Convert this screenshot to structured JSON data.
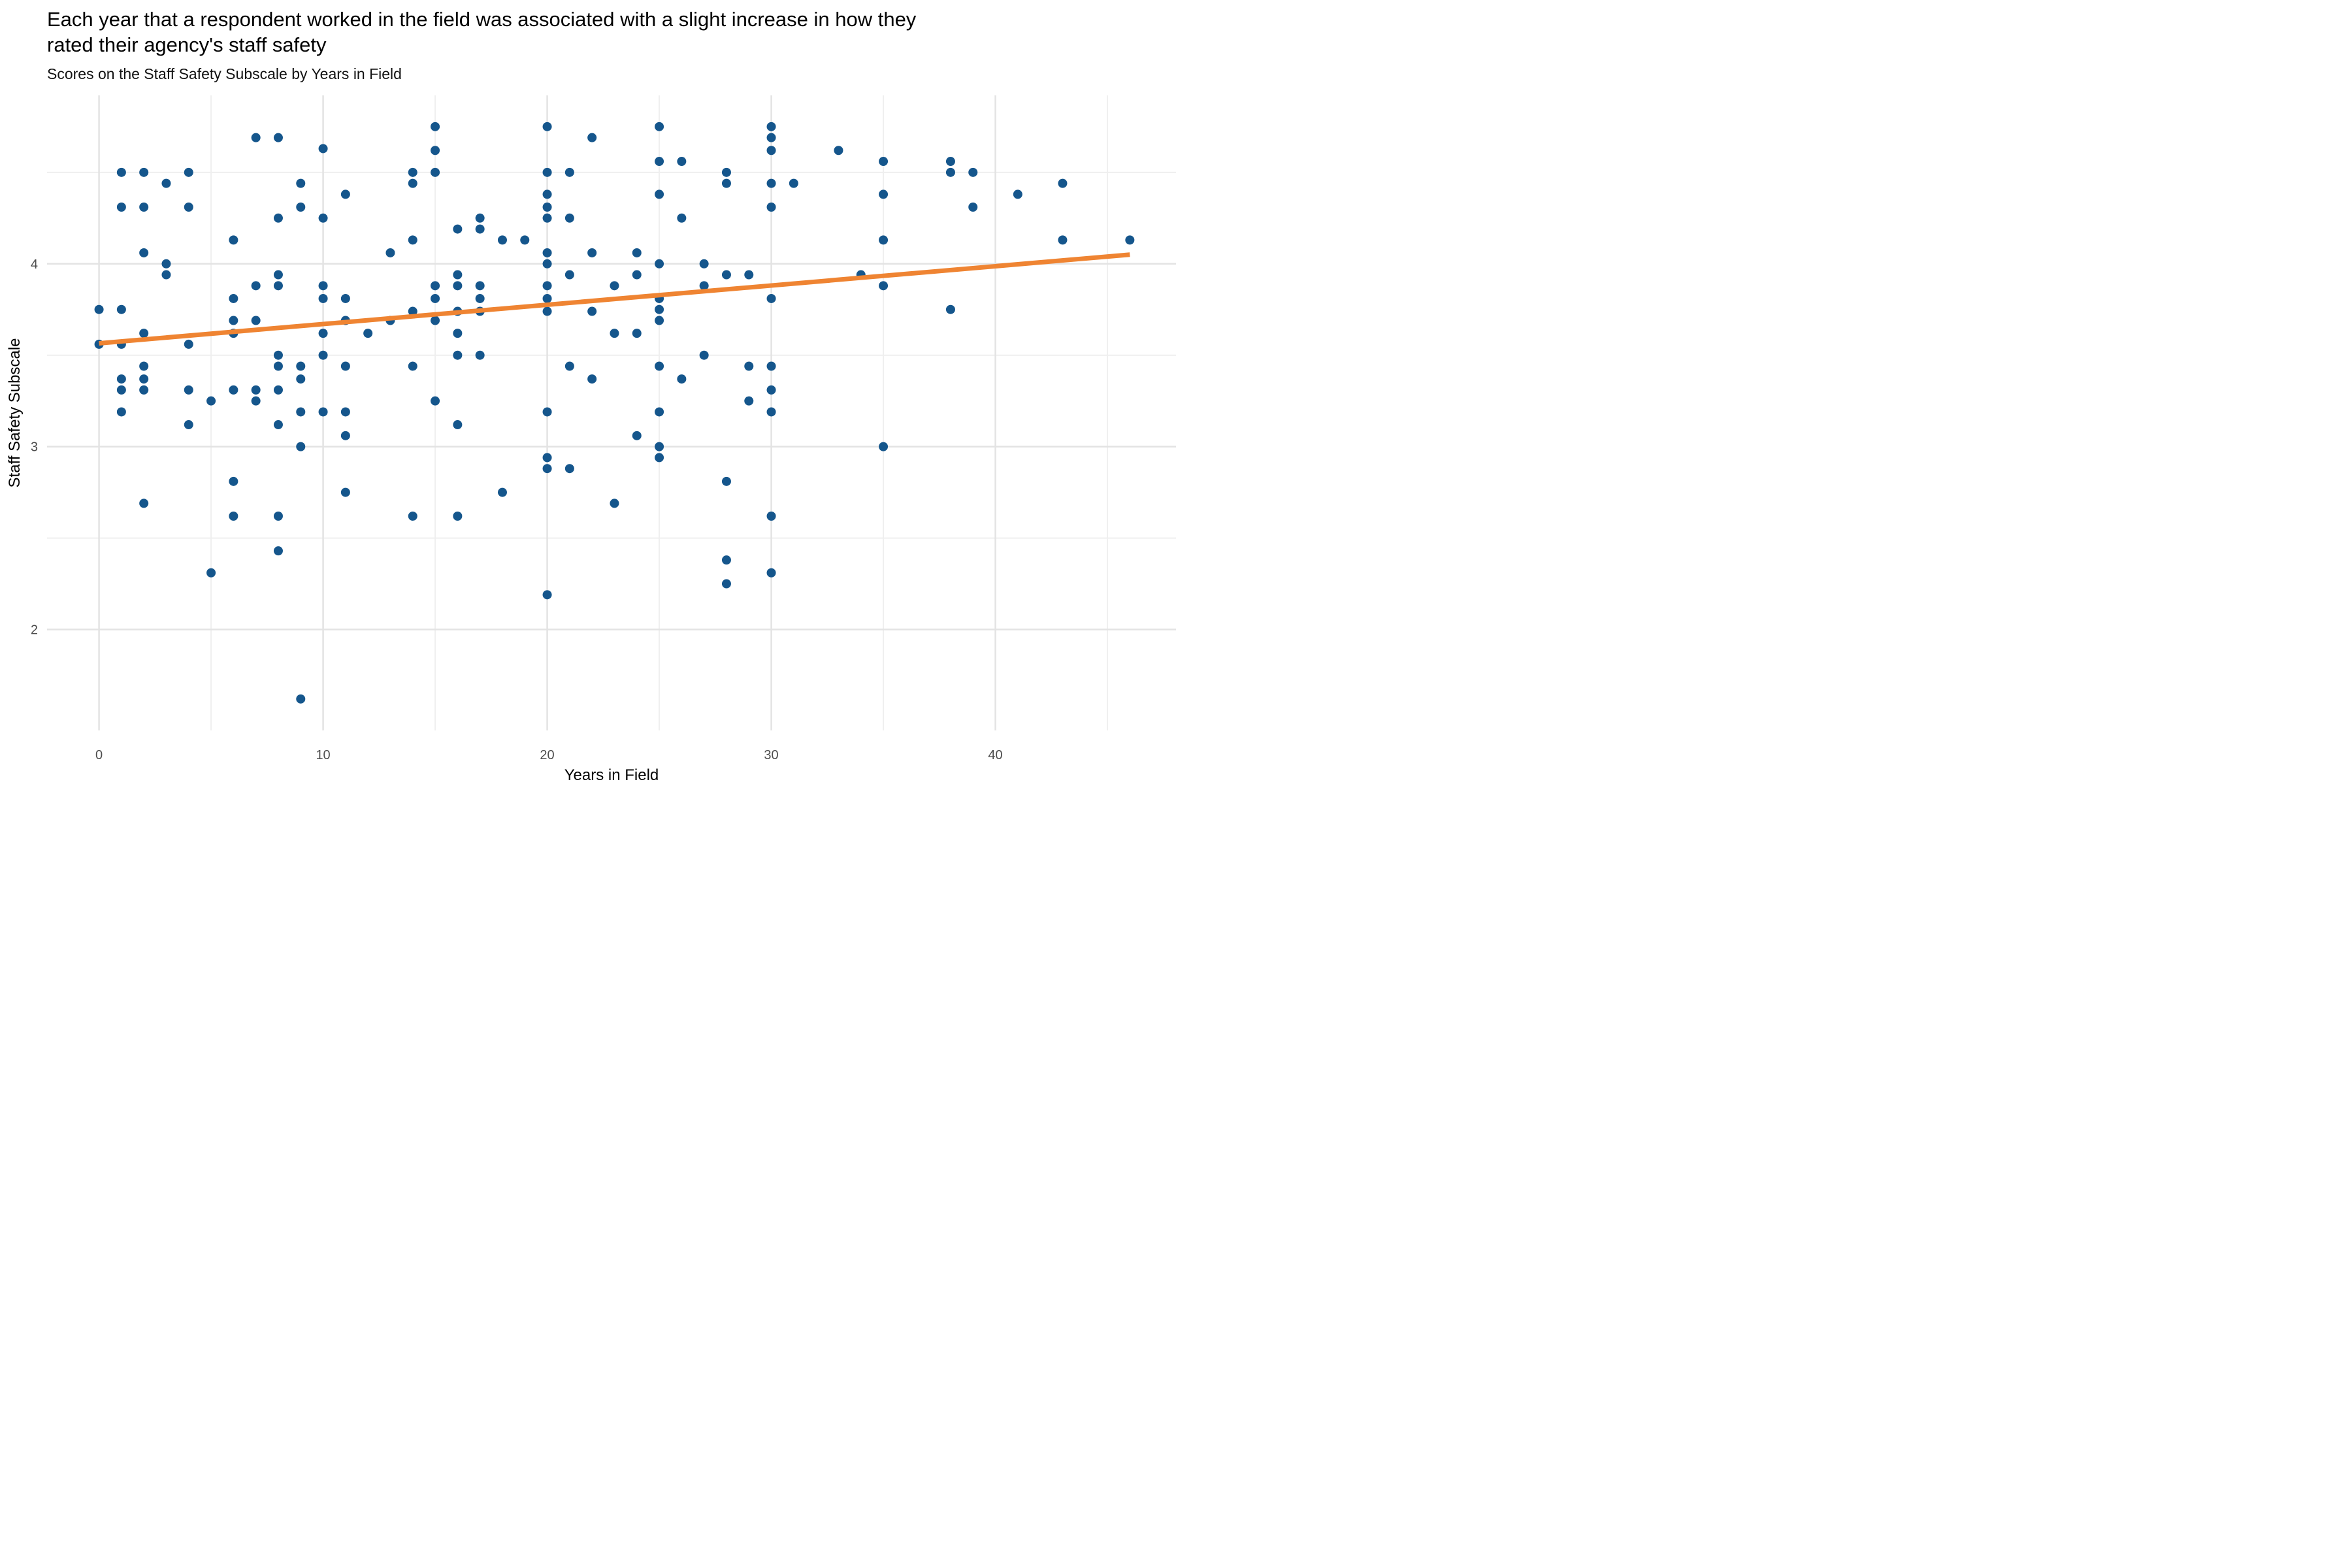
{
  "header": {
    "title_line1": "Each year that a respondent worked in the field was associated with a slight increase in how they",
    "title_line2": "rated their agency's staff safety",
    "subtitle": "Scores on the Staff Safety Subscale by Years in Field"
  },
  "chart_data": {
    "type": "scatter",
    "title": "Each year that a respondent worked in the field was associated with a slight increase in how they rated their agency's staff safety",
    "subtitle": "Scores on the Staff Safety Subscale by Years in Field",
    "xlabel": "Years in Field",
    "ylabel": "Staff Safety Subscale",
    "xlim": [
      -2.32,
      48.06
    ],
    "ylim": [
      1.448,
      4.921
    ],
    "x_major_ticks": [
      0,
      10,
      20,
      30,
      40
    ],
    "x_minor_ticks": [
      5,
      15,
      25,
      35,
      45
    ],
    "y_major_ticks": [
      2,
      3,
      4
    ],
    "y_minor_ticks": [
      2.5,
      3.5,
      4.5
    ],
    "grid": "on",
    "legend": "none",
    "colors": {
      "point": "#15568C",
      "trend": "#EF8432",
      "grid_major": "#E3E3E3",
      "grid_minor": "#EFEFEF",
      "tick_text": "#4D4D4D"
    },
    "trend_line": {
      "x1": 0,
      "y1": 3.565,
      "x2": 46,
      "y2": 4.05
    },
    "points": [
      [
        0,
        3.75
      ],
      [
        1,
        3.75
      ],
      [
        0,
        3.56
      ],
      [
        1,
        3.56
      ],
      [
        4,
        3.56
      ],
      [
        2,
        3.62
      ],
      [
        6,
        3.62
      ],
      [
        10,
        3.62
      ],
      [
        12,
        3.62
      ],
      [
        16,
        3.62
      ],
      [
        23,
        3.62
      ],
      [
        24,
        3.62
      ],
      [
        6,
        3.69
      ],
      [
        7,
        3.69
      ],
      [
        11,
        3.69
      ],
      [
        13,
        3.69
      ],
      [
        15,
        3.69
      ],
      [
        25,
        3.69
      ],
      [
        14,
        3.74
      ],
      [
        16,
        3.74
      ],
      [
        17,
        3.74
      ],
      [
        20,
        3.74
      ],
      [
        22,
        3.74
      ],
      [
        25,
        3.75
      ],
      [
        38,
        3.75
      ],
      [
        6,
        3.81
      ],
      [
        10,
        3.81
      ],
      [
        11,
        3.81
      ],
      [
        15,
        3.81
      ],
      [
        17,
        3.81
      ],
      [
        20,
        3.81
      ],
      [
        25,
        3.81
      ],
      [
        30,
        3.81
      ],
      [
        7,
        3.88
      ],
      [
        8,
        3.88
      ],
      [
        10,
        3.88
      ],
      [
        15,
        3.88
      ],
      [
        16,
        3.88
      ],
      [
        17,
        3.88
      ],
      [
        20,
        3.88
      ],
      [
        23,
        3.88
      ],
      [
        27,
        3.88
      ],
      [
        35,
        3.88
      ],
      [
        3,
        3.94
      ],
      [
        8,
        3.94
      ],
      [
        16,
        3.94
      ],
      [
        21,
        3.94
      ],
      [
        24,
        3.94
      ],
      [
        28,
        3.94
      ],
      [
        29,
        3.94
      ],
      [
        34,
        3.94
      ],
      [
        3,
        4.0
      ],
      [
        20,
        4.0
      ],
      [
        25,
        4.0
      ],
      [
        27,
        4.0
      ],
      [
        2,
        4.06
      ],
      [
        13,
        4.06
      ],
      [
        20,
        4.06
      ],
      [
        22,
        4.06
      ],
      [
        24,
        4.06
      ],
      [
        6,
        4.13
      ],
      [
        14,
        4.13
      ],
      [
        18,
        4.13
      ],
      [
        19,
        4.13
      ],
      [
        35,
        4.13
      ],
      [
        43,
        4.13
      ],
      [
        46,
        4.13
      ],
      [
        16,
        4.19
      ],
      [
        17,
        4.19
      ],
      [
        8,
        4.25
      ],
      [
        10,
        4.25
      ],
      [
        17,
        4.25
      ],
      [
        20,
        4.25
      ],
      [
        21,
        4.25
      ],
      [
        26,
        4.25
      ],
      [
        1,
        4.31
      ],
      [
        2,
        4.31
      ],
      [
        4,
        4.31
      ],
      [
        9,
        4.31
      ],
      [
        20,
        4.31
      ],
      [
        30,
        4.31
      ],
      [
        39,
        4.31
      ],
      [
        11,
        4.38
      ],
      [
        20,
        4.38
      ],
      [
        25,
        4.38
      ],
      [
        35,
        4.38
      ],
      [
        41,
        4.38
      ],
      [
        3,
        4.44
      ],
      [
        9,
        4.44
      ],
      [
        14,
        4.44
      ],
      [
        28,
        4.44
      ],
      [
        30,
        4.44
      ],
      [
        31,
        4.44
      ],
      [
        43,
        4.44
      ],
      [
        1,
        4.5
      ],
      [
        2,
        4.5
      ],
      [
        4,
        4.5
      ],
      [
        14,
        4.5
      ],
      [
        15,
        4.5
      ],
      [
        20,
        4.5
      ],
      [
        21,
        4.5
      ],
      [
        28,
        4.5
      ],
      [
        38,
        4.5
      ],
      [
        39,
        4.5
      ],
      [
        25,
        4.56
      ],
      [
        26,
        4.56
      ],
      [
        35,
        4.56
      ],
      [
        38,
        4.56
      ],
      [
        10,
        4.63
      ],
      [
        15,
        4.62
      ],
      [
        30,
        4.62
      ],
      [
        33,
        4.62
      ],
      [
        7,
        4.69
      ],
      [
        8,
        4.69
      ],
      [
        22,
        4.69
      ],
      [
        30,
        4.69
      ],
      [
        15,
        4.75
      ],
      [
        20,
        4.75
      ],
      [
        25,
        4.75
      ],
      [
        30,
        4.75
      ],
      [
        8,
        3.5
      ],
      [
        10,
        3.5
      ],
      [
        16,
        3.5
      ],
      [
        17,
        3.5
      ],
      [
        27,
        3.5
      ],
      [
        2,
        3.44
      ],
      [
        8,
        3.44
      ],
      [
        9,
        3.44
      ],
      [
        11,
        3.44
      ],
      [
        14,
        3.44
      ],
      [
        21,
        3.44
      ],
      [
        25,
        3.44
      ],
      [
        29,
        3.44
      ],
      [
        30,
        3.44
      ],
      [
        1,
        3.37
      ],
      [
        2,
        3.37
      ],
      [
        9,
        3.37
      ],
      [
        22,
        3.37
      ],
      [
        26,
        3.37
      ],
      [
        1,
        3.31
      ],
      [
        2,
        3.31
      ],
      [
        4,
        3.31
      ],
      [
        6,
        3.31
      ],
      [
        7,
        3.31
      ],
      [
        8,
        3.31
      ],
      [
        30,
        3.31
      ],
      [
        5,
        3.25
      ],
      [
        7,
        3.25
      ],
      [
        15,
        3.25
      ],
      [
        29,
        3.25
      ],
      [
        1,
        3.19
      ],
      [
        9,
        3.19
      ],
      [
        10,
        3.19
      ],
      [
        11,
        3.19
      ],
      [
        20,
        3.19
      ],
      [
        25,
        3.19
      ],
      [
        30,
        3.19
      ],
      [
        4,
        3.12
      ],
      [
        8,
        3.12
      ],
      [
        16,
        3.12
      ],
      [
        11,
        3.06
      ],
      [
        24,
        3.06
      ],
      [
        9,
        3.0
      ],
      [
        25,
        3.0
      ],
      [
        35,
        3.0
      ],
      [
        20,
        2.94
      ],
      [
        25,
        2.94
      ],
      [
        20,
        2.88
      ],
      [
        21,
        2.88
      ],
      [
        6,
        2.81
      ],
      [
        28,
        2.81
      ],
      [
        11,
        2.75
      ],
      [
        18,
        2.75
      ],
      [
        2,
        2.69
      ],
      [
        23,
        2.69
      ],
      [
        6,
        2.62
      ],
      [
        8,
        2.62
      ],
      [
        14,
        2.62
      ],
      [
        16,
        2.62
      ],
      [
        30,
        2.62
      ],
      [
        8,
        2.43
      ],
      [
        28,
        2.38
      ],
      [
        5,
        2.31
      ],
      [
        30,
        2.31
      ],
      [
        28,
        2.25
      ],
      [
        20,
        2.19
      ],
      [
        9,
        1.62
      ]
    ]
  }
}
